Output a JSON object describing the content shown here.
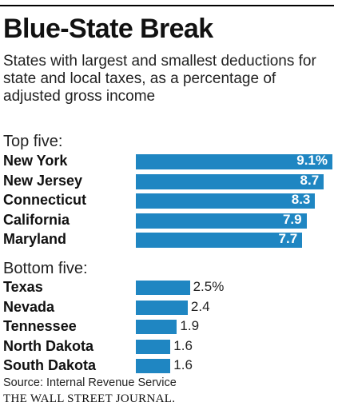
{
  "header": {
    "title": "Blue-State Break",
    "subtitle": "States with largest and smallest deductions for state and local taxes, as a percentage of adjusted gross income"
  },
  "sections": {
    "top_label": "Top five:",
    "bottom_label": "Bottom five:"
  },
  "footer": {
    "source": "Source: Internal Revenue Service",
    "brand": "THE WALL STREET JOURNAL."
  },
  "colors": {
    "bar": "#1f86c2"
  },
  "chart_data": [
    {
      "type": "bar",
      "orientation": "horizontal",
      "title": "Top five:",
      "unit": "%",
      "categories": [
        "New York",
        "New Jersey",
        "Connecticut",
        "California",
        "Maryland"
      ],
      "values": [
        9.1,
        8.7,
        8.3,
        7.9,
        7.7
      ],
      "value_labels": [
        "9.1%",
        "8.7",
        "8.3",
        "7.9",
        "7.7"
      ],
      "xlim": [
        0,
        9.1
      ],
      "grid": false
    },
    {
      "type": "bar",
      "orientation": "horizontal",
      "title": "Bottom five:",
      "unit": "%",
      "categories": [
        "Texas",
        "Nevada",
        "Tennessee",
        "North Dakota",
        "South Dakota"
      ],
      "values": [
        2.5,
        2.4,
        1.9,
        1.6,
        1.6
      ],
      "value_labels": [
        "2.5%",
        "2.4",
        "1.9",
        "1.6",
        "1.6"
      ],
      "xlim": [
        0,
        9.1
      ],
      "grid": false
    }
  ]
}
